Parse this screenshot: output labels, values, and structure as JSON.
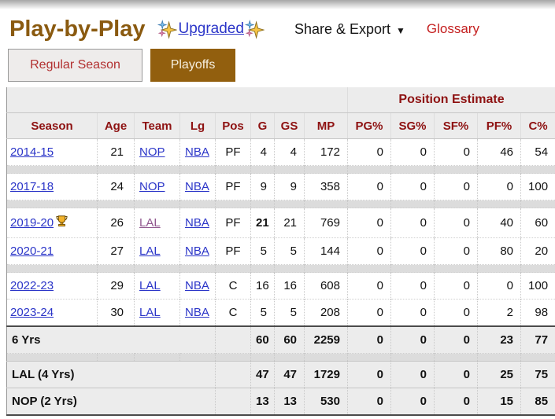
{
  "header": {
    "title": "Play-by-Play",
    "upgraded_label": "Upgraded",
    "share_export_label": "Share & Export",
    "dropdown_arrow": "▼",
    "glossary_label": "Glossary",
    "title_color": "#8a5a10",
    "glossary_color": "#c41f1f",
    "link_color": "#2b35c8"
  },
  "tabs": [
    {
      "label": "Regular Season",
      "active": false
    },
    {
      "label": "Playoffs",
      "active": true
    }
  ],
  "table": {
    "group_header": "Position Estimate",
    "columns": [
      "Season",
      "Age",
      "Team",
      "Lg",
      "Pos",
      "G",
      "GS",
      "MP",
      "PG%",
      "SG%",
      "SF%",
      "PF%",
      "C%"
    ],
    "header_text_color": "#8e1212",
    "active_tab_color": "#925f0e",
    "visited_link_color": "#91588f",
    "rows": [
      {
        "season": "2014-15",
        "trophy": false,
        "age": "21",
        "team": "NOP",
        "team_visited": false,
        "lg": "NBA",
        "pos": "PF",
        "g": "4",
        "g_bold": false,
        "gs": "4",
        "mp": "172",
        "pg": "0",
        "sg": "0",
        "sf": "0",
        "pf": "46",
        "c": "54",
        "spacer_after": true
      },
      {
        "season": "2017-18",
        "trophy": false,
        "age": "24",
        "team": "NOP",
        "team_visited": false,
        "lg": "NBA",
        "pos": "PF",
        "g": "9",
        "g_bold": false,
        "gs": "9",
        "mp": "358",
        "pg": "0",
        "sg": "0",
        "sf": "0",
        "pf": "0",
        "c": "100",
        "spacer_after": true
      },
      {
        "season": "2019-20",
        "trophy": true,
        "age": "26",
        "team": "LAL",
        "team_visited": true,
        "lg": "NBA",
        "pos": "PF",
        "g": "21",
        "g_bold": true,
        "gs": "21",
        "mp": "769",
        "pg": "0",
        "sg": "0",
        "sf": "0",
        "pf": "40",
        "c": "60",
        "spacer_after": false
      },
      {
        "season": "2020-21",
        "trophy": false,
        "age": "27",
        "team": "LAL",
        "team_visited": false,
        "lg": "NBA",
        "pos": "PF",
        "g": "5",
        "g_bold": false,
        "gs": "5",
        "mp": "144",
        "pg": "0",
        "sg": "0",
        "sf": "0",
        "pf": "80",
        "c": "20",
        "spacer_after": true
      },
      {
        "season": "2022-23",
        "trophy": false,
        "age": "29",
        "team": "LAL",
        "team_visited": false,
        "lg": "NBA",
        "pos": "C",
        "g": "16",
        "g_bold": false,
        "gs": "16",
        "mp": "608",
        "pg": "0",
        "sg": "0",
        "sf": "0",
        "pf": "0",
        "c": "100",
        "spacer_after": false
      },
      {
        "season": "2023-24",
        "trophy": false,
        "age": "30",
        "team": "LAL",
        "team_visited": false,
        "lg": "NBA",
        "pos": "C",
        "g": "5",
        "g_bold": false,
        "gs": "5",
        "mp": "208",
        "pg": "0",
        "sg": "0",
        "sf": "0",
        "pf": "2",
        "c": "98",
        "spacer_after": false
      }
    ],
    "summary_rows": [
      {
        "label": "6 Yrs",
        "g": "60",
        "gs": "60",
        "mp": "2259",
        "pg": "0",
        "sg": "0",
        "sf": "0",
        "pf": "23",
        "c": "77",
        "top_border": true,
        "spacer_after": true
      },
      {
        "label": "LAL (4 Yrs)",
        "g": "47",
        "gs": "47",
        "mp": "1729",
        "pg": "0",
        "sg": "0",
        "sf": "0",
        "pf": "25",
        "c": "75",
        "top_border": false,
        "spacer_after": false
      },
      {
        "label": "NOP (2 Yrs)",
        "g": "13",
        "gs": "13",
        "mp": "530",
        "pg": "0",
        "sg": "0",
        "sf": "0",
        "pf": "15",
        "c": "85",
        "top_border": false,
        "spacer_after": false
      }
    ]
  }
}
